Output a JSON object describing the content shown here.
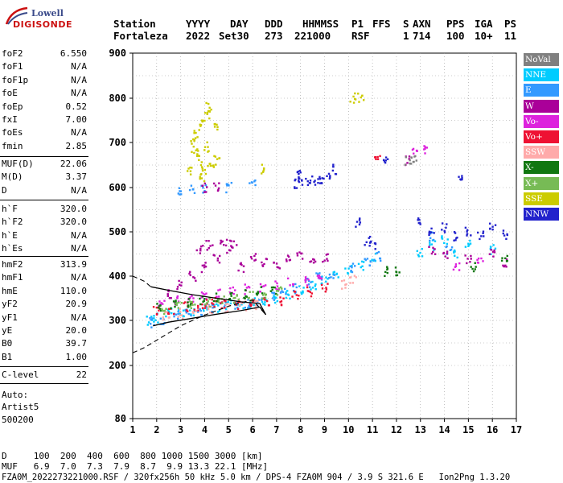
{
  "logo": {
    "line1": "Lowell",
    "line2": "DIGISONDE"
  },
  "header": {
    "row1": [
      "Station",
      "YYYY",
      "DAY",
      "DDD",
      "HHMMSS",
      "P1",
      "FFS",
      "S",
      "AXN",
      "PPS",
      "IGA",
      "PS"
    ],
    "row2": [
      "Fortaleza",
      "2022",
      "Set30",
      "273",
      "221000",
      "RSF",
      "1",
      "714",
      "100",
      "10+",
      "11"
    ]
  },
  "params": {
    "group1": [
      {
        "name": "foF2",
        "value": "6.550"
      },
      {
        "name": "foF1",
        "value": "N/A"
      },
      {
        "name": "foF1p",
        "value": "N/A"
      },
      {
        "name": "foE",
        "value": "N/A"
      },
      {
        "name": "foEp",
        "value": "0.52"
      },
      {
        "name": "fxI",
        "value": "7.00"
      },
      {
        "name": "foEs",
        "value": "N/A"
      },
      {
        "name": "fmin",
        "value": "2.85"
      }
    ],
    "group2": [
      {
        "name": "MUF(D)",
        "value": "22.06"
      },
      {
        "name": "M(D)",
        "value": "3.37"
      },
      {
        "name": "D",
        "value": "N/A"
      }
    ],
    "group3": [
      {
        "name": "h`F",
        "value": "320.0"
      },
      {
        "name": "h`F2",
        "value": "320.0"
      },
      {
        "name": "h`E",
        "value": "N/A"
      },
      {
        "name": "h`Es",
        "value": "N/A"
      }
    ],
    "group4": [
      {
        "name": "hmF2",
        "value": "313.9"
      },
      {
        "name": "hmF1",
        "value": "N/A"
      },
      {
        "name": "hmE",
        "value": "110.0"
      },
      {
        "name": "yF2",
        "value": "20.9"
      },
      {
        "name": "yF1",
        "value": "N/A"
      },
      {
        "name": "yE",
        "value": "20.0"
      },
      {
        "name": "B0",
        "value": "39.7"
      },
      {
        "name": "B1",
        "value": "1.00"
      }
    ],
    "group5": [
      {
        "name": "C-level",
        "value": "22"
      }
    ]
  },
  "auto": {
    "line1": "Auto:",
    "line2": "Artist5",
    "line3": "500200"
  },
  "legend": [
    {
      "label": "NoVal",
      "color": "#808080"
    },
    {
      "label": "NNE",
      "color": "#00ccff"
    },
    {
      "label": "E",
      "color": "#3399ff"
    },
    {
      "label": "W",
      "color": "#aa0099"
    },
    {
      "label": "Vo-",
      "color": "#dd22dd"
    },
    {
      "label": "Vo+",
      "color": "#ee1133"
    },
    {
      "label": "SSW",
      "color": "#ffaaaa"
    },
    {
      "label": "X-",
      "color": "#117711"
    },
    {
      "label": "X+",
      "color": "#77bb55"
    },
    {
      "label": "SSE",
      "color": "#cccc00"
    },
    {
      "label": "NNW",
      "color": "#2222cc"
    }
  ],
  "footer": {
    "line1": "D     100  200  400  600  800 1000 1500 3000 [km]",
    "line2": "MUF   6.9  7.0  7.3  7.9  8.7  9.9 13.3 22.1 [MHz]",
    "line3": "FZA0M_2022273221000.RSF / 320fx256h 50 kHz 5.0 km / DPS-4 FZA0M 904 / 3.9 S 321.6 E   Ion2Png 1.3.20"
  },
  "chart_data": {
    "type": "scatter",
    "xlim": [
      1,
      17
    ],
    "ylim": [
      80,
      900
    ],
    "xticks": [
      "1",
      "2",
      "3",
      "4",
      "5",
      "6",
      "7",
      "8",
      "9",
      "10",
      "11",
      "12",
      "13",
      "14",
      "15",
      "16",
      "17"
    ],
    "yticks": [
      {
        "value": 900,
        "label": "900"
      },
      {
        "value": 800,
        "label": "800"
      },
      {
        "value": 700,
        "label": "700"
      },
      {
        "value": 600,
        "label": "600"
      },
      {
        "value": 500,
        "label": "500"
      },
      {
        "value": 400,
        "label": "400"
      },
      {
        "value": 300,
        "label": "300"
      },
      {
        "value": 200,
        "label": "200"
      },
      {
        "value": 80,
        "label": "80"
      }
    ],
    "grid": true,
    "series": [
      {
        "name": "NNE",
        "color": "#00ccff",
        "points": [
          [
            1.7,
            300
          ],
          [
            2.0,
            305
          ],
          [
            2.5,
            318
          ],
          [
            3.0,
            320
          ],
          [
            3.5,
            322
          ],
          [
            4.0,
            325
          ],
          [
            4.5,
            330
          ],
          [
            5.0,
            335
          ],
          [
            5.5,
            338
          ],
          [
            6.0,
            340
          ],
          [
            6.5,
            345
          ],
          [
            7.0,
            350
          ],
          [
            7.5,
            360
          ],
          [
            8.0,
            370
          ],
          [
            8.5,
            380
          ],
          [
            9.0,
            390
          ],
          [
            9.5,
            400
          ],
          [
            10.0,
            415
          ],
          [
            10.5,
            425
          ],
          [
            11.0,
            440
          ],
          [
            13.0,
            455
          ],
          [
            13.5,
            470
          ],
          [
            14.0,
            480
          ],
          [
            14.5,
            450
          ],
          [
            15.0,
            470
          ],
          [
            16.0,
            460
          ]
        ]
      },
      {
        "name": "E",
        "color": "#3399ff",
        "points": [
          [
            1.8,
            295
          ],
          [
            2.2,
            300
          ],
          [
            2.8,
            312
          ],
          [
            3.3,
            318
          ],
          [
            3.8,
            322
          ],
          [
            4.3,
            326
          ],
          [
            4.8,
            330
          ],
          [
            5.3,
            334
          ],
          [
            5.8,
            338
          ],
          [
            6.3,
            344
          ],
          [
            6.8,
            352
          ],
          [
            7.3,
            362
          ],
          [
            7.8,
            372
          ],
          [
            8.3,
            384
          ],
          [
            8.8,
            396
          ],
          [
            9.3,
            405
          ],
          [
            10.2,
            420
          ],
          [
            10.8,
            430
          ],
          [
            11.2,
            445
          ],
          [
            3.0,
            590
          ],
          [
            3.5,
            595
          ],
          [
            4.0,
            598
          ],
          [
            5.0,
            600
          ],
          [
            6.0,
            605
          ],
          [
            13.5,
            490
          ],
          [
            14.2,
            460
          ]
        ]
      },
      {
        "name": "W",
        "color": "#aa0099",
        "points": [
          [
            2.5,
            360
          ],
          [
            3.0,
            380
          ],
          [
            3.5,
            400
          ],
          [
            4.0,
            420
          ],
          [
            4.5,
            440
          ],
          [
            5.0,
            460
          ],
          [
            5.5,
            420
          ],
          [
            6.0,
            440
          ],
          [
            6.5,
            430
          ],
          [
            7.0,
            420
          ],
          [
            7.5,
            440
          ],
          [
            8.0,
            450
          ],
          [
            8.5,
            430
          ],
          [
            9.0,
            440
          ],
          [
            3.8,
            460
          ],
          [
            4.2,
            470
          ],
          [
            4.8,
            480
          ],
          [
            5.2,
            470
          ],
          [
            4.0,
            600
          ],
          [
            4.5,
            600
          ],
          [
            13.5,
            460
          ],
          [
            14.0,
            450
          ],
          [
            15.0,
            440
          ],
          [
            16.0,
            450
          ],
          [
            16.5,
            430
          ],
          [
            12.5,
            660
          ]
        ]
      },
      {
        "name": "Vo-",
        "color": "#dd22dd",
        "points": [
          [
            2.2,
            340
          ],
          [
            2.8,
            345
          ],
          [
            3.4,
            350
          ],
          [
            4.0,
            355
          ],
          [
            4.6,
            360
          ],
          [
            5.2,
            365
          ],
          [
            5.8,
            370
          ],
          [
            6.4,
            375
          ],
          [
            7.0,
            380
          ],
          [
            7.6,
            385
          ],
          [
            8.2,
            390
          ],
          [
            8.8,
            395
          ],
          [
            12.8,
            680
          ],
          [
            13.2,
            685
          ],
          [
            14.5,
            420
          ],
          [
            15.5,
            430
          ]
        ]
      },
      {
        "name": "Vo+",
        "color": "#ee1133",
        "points": [
          [
            2.0,
            320
          ],
          [
            2.6,
            325
          ],
          [
            3.2,
            330
          ],
          [
            3.6,
            332
          ],
          [
            4.0,
            336
          ],
          [
            4.4,
            340
          ],
          [
            4.8,
            338
          ],
          [
            5.4,
            334
          ],
          [
            6.0,
            336
          ],
          [
            6.6,
            340
          ],
          [
            7.2,
            345
          ],
          [
            7.8,
            355
          ],
          [
            8.4,
            365
          ],
          [
            9.0,
            375
          ],
          [
            11.2,
            665
          ]
        ]
      },
      {
        "name": "SSW",
        "color": "#ffaaaa",
        "points": [
          [
            2.4,
            310
          ],
          [
            3.0,
            315
          ],
          [
            3.6,
            318
          ],
          [
            4.2,
            322
          ],
          [
            5.0,
            328
          ],
          [
            5.6,
            332
          ],
          [
            6.2,
            336
          ],
          [
            9.8,
            380
          ],
          [
            10.2,
            390
          ]
        ]
      },
      {
        "name": "X-",
        "color": "#117711",
        "points": [
          [
            2.1,
            330
          ],
          [
            2.7,
            335
          ],
          [
            3.3,
            340
          ],
          [
            3.9,
            345
          ],
          [
            4.5,
            350
          ],
          [
            5.1,
            355
          ],
          [
            5.7,
            360
          ],
          [
            6.3,
            365
          ],
          [
            6.9,
            370
          ],
          [
            11.5,
            410
          ],
          [
            12.0,
            412
          ],
          [
            15.2,
            420
          ],
          [
            16.5,
            440
          ]
        ]
      },
      {
        "name": "X+",
        "color": "#77bb55",
        "points": [
          [
            2.3,
            325
          ],
          [
            2.9,
            330
          ],
          [
            3.5,
            335
          ],
          [
            4.1,
            340
          ],
          [
            4.7,
            345
          ],
          [
            5.3,
            350
          ],
          [
            5.9,
            355
          ],
          [
            6.5,
            360
          ],
          [
            7.1,
            365
          ]
        ]
      },
      {
        "name": "SSE",
        "color": "#cccc00",
        "points": [
          [
            3.5,
            700
          ],
          [
            3.7,
            720
          ],
          [
            3.9,
            740
          ],
          [
            4.1,
            760
          ],
          [
            4.2,
            780
          ],
          [
            3.6,
            680
          ],
          [
            3.8,
            660
          ],
          [
            4.0,
            640
          ],
          [
            4.3,
            650
          ],
          [
            4.5,
            660
          ],
          [
            3.4,
            640
          ],
          [
            3.9,
            620
          ],
          [
            4.1,
            690
          ],
          [
            4.4,
            740
          ],
          [
            10.2,
            800
          ],
          [
            10.5,
            800
          ],
          [
            6.5,
            640
          ]
        ]
      },
      {
        "name": "NNW",
        "color": "#2222cc",
        "points": [
          [
            8.0,
            610
          ],
          [
            8.3,
            612
          ],
          [
            8.6,
            615
          ],
          [
            8.9,
            620
          ],
          [
            9.1,
            625
          ],
          [
            7.8,
            608
          ],
          [
            9.4,
            640
          ],
          [
            10.4,
            520
          ],
          [
            10.8,
            480
          ],
          [
            11.0,
            470
          ],
          [
            13.0,
            520
          ],
          [
            13.5,
            500
          ],
          [
            14.0,
            510
          ],
          [
            14.5,
            490
          ],
          [
            15.0,
            500
          ],
          [
            15.5,
            490
          ],
          [
            16.0,
            510
          ],
          [
            16.5,
            495
          ],
          [
            11.5,
            660
          ],
          [
            14.7,
            625
          ],
          [
            8.0,
            630
          ]
        ]
      },
      {
        "name": "NoVal",
        "color": "#808080",
        "points": [
          [
            12.5,
            660
          ],
          [
            12.7,
            662
          ]
        ]
      }
    ],
    "profile_line": [
      [
        1.75,
        376
      ],
      [
        2.5,
        368
      ],
      [
        3.5,
        358
      ],
      [
        4.5,
        350
      ],
      [
        5.5,
        342
      ],
      [
        6.3,
        338
      ],
      [
        6.55,
        313
      ]
    ],
    "profile_lower": [
      [
        1.85,
        288
      ],
      [
        2.5,
        296
      ],
      [
        3.5,
        305
      ],
      [
        4.5,
        314
      ],
      [
        5.5,
        322
      ],
      [
        6.3,
        330
      ],
      [
        6.55,
        313
      ]
    ],
    "profile_dashed": [
      [
        1.0,
        228
      ],
      [
        1.5,
        240
      ],
      [
        2.0,
        256
      ],
      [
        2.5,
        272
      ],
      [
        3.0,
        288
      ],
      [
        3.5,
        300
      ],
      [
        4.0,
        312
      ],
      [
        4.5,
        322
      ],
      [
        5.0,
        332
      ],
      [
        5.5,
        340
      ],
      [
        6.0,
        346
      ],
      [
        6.55,
        313
      ]
    ],
    "profile_top_dashed": [
      [
        1.0,
        400
      ],
      [
        1.5,
        388
      ],
      [
        1.75,
        376
      ]
    ]
  }
}
